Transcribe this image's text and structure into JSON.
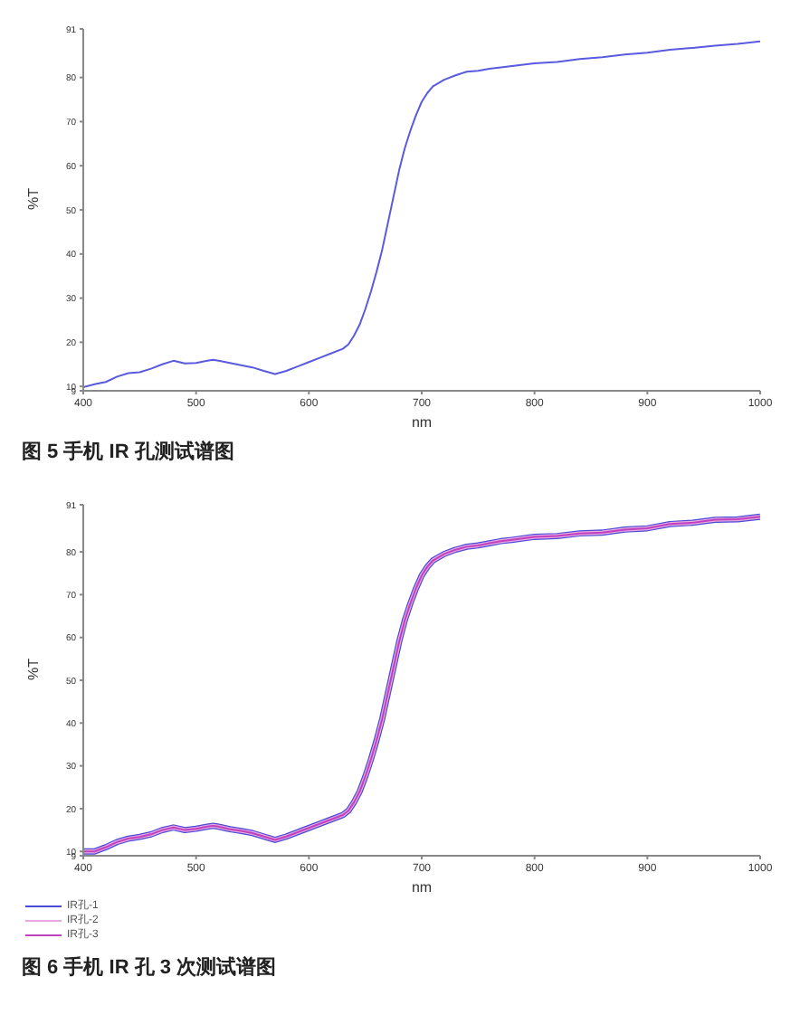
{
  "chart_data": [
    {
      "type": "line",
      "xlabel": "nm",
      "ylabel": "%T",
      "xlim": [
        400,
        1000
      ],
      "xticks": [
        400,
        500,
        600,
        700,
        800,
        900,
        1000
      ],
      "ylim": [
        9,
        91
      ],
      "yticks": [
        9,
        10,
        20,
        30,
        40,
        50,
        60,
        70,
        80,
        91
      ],
      "grid": false,
      "legend": false,
      "marker": "none",
      "line_style": "solid",
      "annotations": [
        "图 5 手机 IR 孔测试谱图"
      ],
      "x": [
        400,
        410,
        420,
        430,
        440,
        450,
        460,
        470,
        480,
        490,
        500,
        510,
        515,
        520,
        530,
        540,
        550,
        560,
        570,
        580,
        590,
        600,
        610,
        620,
        630,
        635,
        640,
        645,
        650,
        655,
        660,
        665,
        670,
        675,
        680,
        685,
        690,
        695,
        700,
        705,
        710,
        720,
        730,
        740,
        750,
        760,
        770,
        780,
        800,
        820,
        840,
        860,
        880,
        900,
        920,
        940,
        960,
        980,
        1000
      ],
      "series": [
        {
          "color": "#5a5ae0",
          "values": [
            9.8,
            10.5,
            11,
            12.2,
            13,
            13.2,
            14,
            15,
            15.8,
            15.2,
            15.3,
            15.8,
            16,
            15.8,
            15.3,
            14.8,
            14.3,
            13.5,
            12.8,
            13.5,
            14.5,
            15.5,
            16.5,
            17.5,
            18.5,
            19.5,
            21.5,
            24,
            27.5,
            31.5,
            36,
            41,
            47,
            53,
            59,
            64,
            68,
            71.5,
            74.5,
            76.5,
            78,
            79.5,
            80.5,
            81.3,
            81.5,
            82,
            82.3,
            82.6,
            83.2,
            83.5,
            84.2,
            84.6,
            85.2,
            85.6,
            86.3,
            86.7,
            87.2,
            87.6,
            88.2
          ]
        }
      ]
    },
    {
      "type": "line",
      "xlabel": "nm",
      "ylabel": "%T",
      "xlim": [
        400,
        1000
      ],
      "xticks": [
        400,
        500,
        600,
        700,
        800,
        900,
        1000
      ],
      "ylim": [
        9,
        91
      ],
      "yticks": [
        9,
        10,
        20,
        30,
        40,
        50,
        60,
        70,
        80,
        91
      ],
      "grid": false,
      "legend": "bottom left",
      "marker": "none",
      "line_style": "solid",
      "annotations": [
        "图 6 手机 IR 孔 3 次测试谱图"
      ],
      "x": [
        400,
        410,
        420,
        430,
        440,
        450,
        460,
        470,
        480,
        490,
        500,
        510,
        515,
        520,
        530,
        540,
        550,
        560,
        570,
        580,
        590,
        600,
        610,
        620,
        630,
        635,
        640,
        645,
        650,
        655,
        660,
        665,
        670,
        675,
        680,
        685,
        690,
        695,
        700,
        705,
        710,
        720,
        730,
        740,
        750,
        760,
        770,
        780,
        800,
        820,
        840,
        860,
        880,
        900,
        920,
        940,
        960,
        980,
        1000
      ],
      "series": [
        {
          "name": "IR孔-1",
          "color": "#4a4ad8",
          "values": [
            10,
            10,
            11,
            12.2,
            13,
            13.4,
            14,
            15,
            15.6,
            15,
            15.3,
            15.8,
            16,
            15.8,
            15.2,
            14.8,
            14.3,
            13.5,
            12.7,
            13.5,
            14.5,
            15.5,
            16.5,
            17.5,
            18.5,
            19.5,
            21.5,
            24,
            27.5,
            31.5,
            36,
            41,
            47,
            53,
            59,
            64,
            68,
            71.5,
            74.5,
            76.5,
            78,
            79.5,
            80.5,
            81.2,
            81.5,
            82,
            82.5,
            82.8,
            83.5,
            83.7,
            84.3,
            84.5,
            85.2,
            85.5,
            86.5,
            86.8,
            87.5,
            87.6,
            88.2
          ]
        },
        {
          "name": "IR孔-2",
          "color": "#e8a8e0",
          "values": [
            10,
            10,
            11,
            12.2,
            13,
            13.4,
            14,
            15,
            15.6,
            15,
            15.3,
            15.8,
            16,
            15.8,
            15.2,
            14.8,
            14.3,
            13.5,
            12.7,
            13.5,
            14.5,
            15.5,
            16.5,
            17.5,
            18.5,
            19.5,
            21.5,
            24,
            27.5,
            31.5,
            36,
            41,
            47,
            53,
            59,
            64,
            68,
            71.5,
            74.5,
            76.5,
            78,
            79.5,
            80.5,
            81.2,
            81.5,
            82,
            82.5,
            82.8,
            83.5,
            83.7,
            84.3,
            84.5,
            85.2,
            85.5,
            86.5,
            86.8,
            87.5,
            87.6,
            88.2
          ]
        },
        {
          "name": "IR孔-3",
          "color": "#c040c0",
          "values": [
            10,
            10,
            11,
            12.2,
            13,
            13.4,
            14,
            15,
            15.6,
            15,
            15.3,
            15.8,
            16,
            15.8,
            15.2,
            14.8,
            14.3,
            13.5,
            12.7,
            13.5,
            14.5,
            15.5,
            16.5,
            17.5,
            18.5,
            19.5,
            21.5,
            24,
            27.5,
            31.5,
            36,
            41,
            47,
            53,
            59,
            64,
            68,
            71.5,
            74.5,
            76.5,
            78,
            79.5,
            80.5,
            81.2,
            81.5,
            82,
            82.5,
            82.8,
            83.5,
            83.7,
            84.3,
            84.5,
            85.2,
            85.5,
            86.5,
            86.8,
            87.5,
            87.6,
            88.2
          ]
        }
      ]
    }
  ]
}
